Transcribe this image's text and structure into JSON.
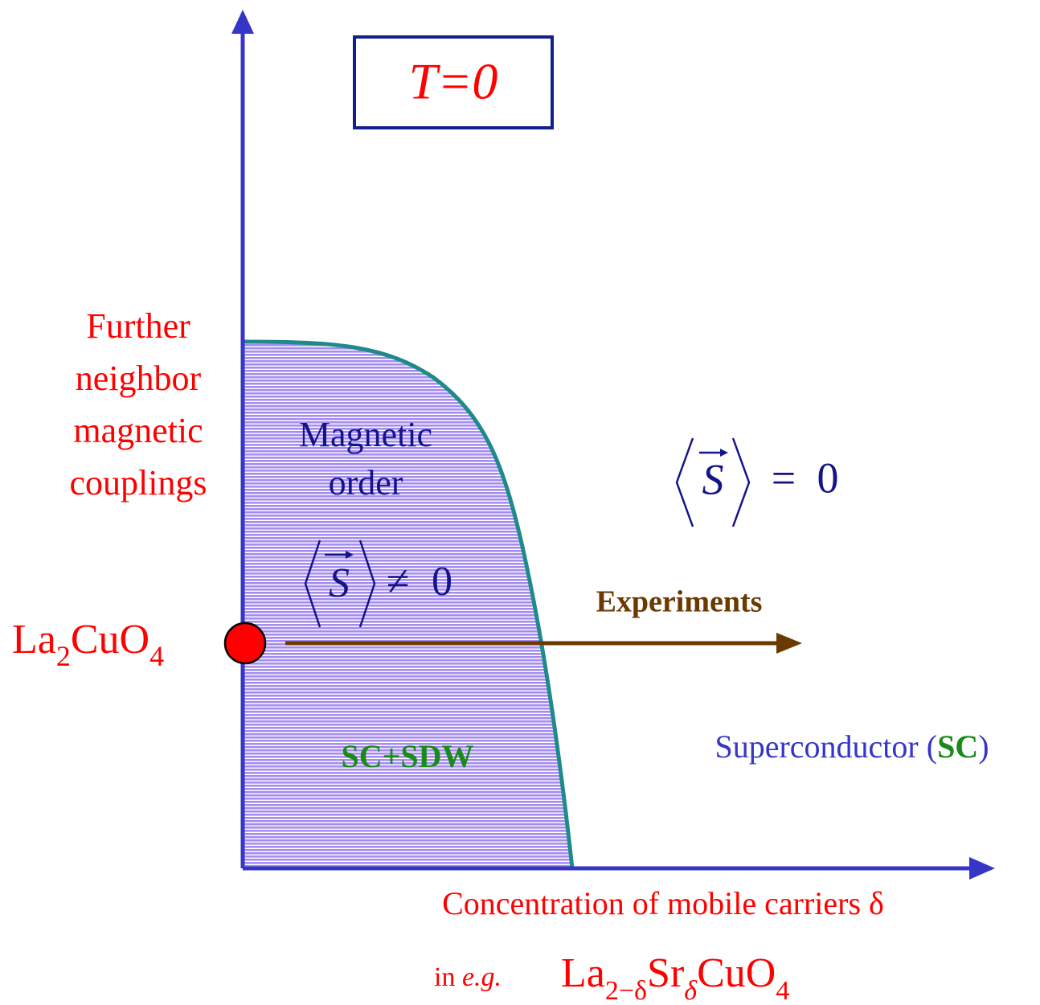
{
  "box_title": "T=0",
  "vertical_axis_label": [
    "Further",
    "neighbor",
    "magnetic",
    "couplings"
  ],
  "ordered_region": {
    "label": [
      "Magnetic",
      "order"
    ],
    "formula": {
      "symbol": "S",
      "relation": "≠",
      "value": "0"
    },
    "phase": "SC+SDW"
  },
  "disordered_region": {
    "formula": {
      "symbol": "S",
      "relation": "=",
      "value": "0"
    },
    "phase": {
      "name": "Superconductor (",
      "abbr": "SC",
      "close": ")"
    }
  },
  "start_point": {
    "parts": [
      "La",
      "2",
      "CuO",
      "4"
    ]
  },
  "arrow_label": "Experiments",
  "horizontal_axis_label": "Concentration of mobile carriers δ",
  "example": {
    "prefix": "in ",
    "eg": "e.g.",
    "parts": [
      "La",
      "2−δ",
      "Sr",
      "δ",
      "CuO",
      "4"
    ]
  }
}
